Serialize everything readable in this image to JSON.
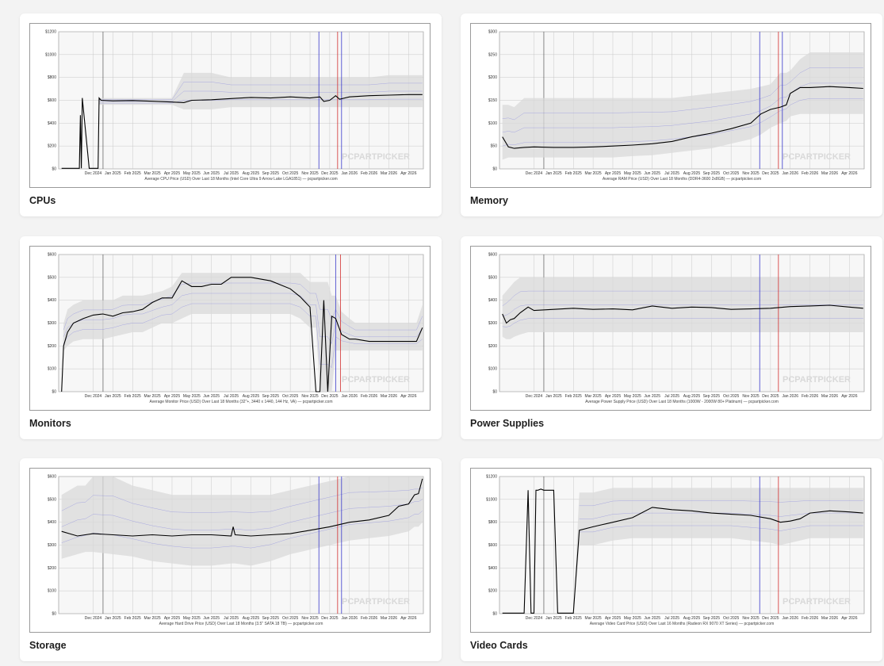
{
  "months": [
    "Dec 2024",
    "Jan 2025",
    "Feb 2025",
    "Mar 2025",
    "Apr 2025",
    "May 2025",
    "Jun 2025",
    "Jul 2025",
    "Aug 2025",
    "Sep 2025",
    "Oct 2025",
    "Nov 2025",
    "Dec 2025",
    "Jan 2026",
    "Feb 2026",
    "Mar 2026",
    "Apr 2026"
  ],
  "watermark": "PCPARTPICKER",
  "colors": {
    "price_line": "#000000",
    "range_band": "#d9d9d9",
    "retailer_lines": "#6a6ae0",
    "blue_marker": "#3a3acc",
    "red_marker": "#d33030",
    "grid": "#c8c8c8",
    "plot_bg": "#f7f7f7"
  },
  "chart_data": [
    {
      "type": "line",
      "card_title": "CPUs",
      "caption": "Average CPU Price (USD) Over Last 18 Months (Intel Core Ultra 9 Arrow Lake LGA1851) — pcpartpicker.com",
      "yticks": [
        "$0",
        "$200",
        "$400",
        "$600",
        "$800",
        "$1000",
        "$1200"
      ],
      "ylim": [
        0,
        1200
      ],
      "x": [
        -1.6,
        -0.7,
        -0.65,
        -0.6,
        -0.55,
        -0.2,
        0.25,
        0.3,
        0.4,
        1,
        2,
        3,
        4,
        4.6,
        5,
        6,
        7,
        8,
        9,
        10,
        11,
        11.5,
        11.7,
        12,
        12.3,
        12.5,
        13,
        14,
        15,
        16,
        16.7
      ],
      "values": [
        5,
        5,
        470,
        5,
        620,
        5,
        5,
        620,
        600,
        595,
        598,
        592,
        585,
        580,
        600,
        605,
        615,
        625,
        620,
        630,
        620,
        630,
        590,
        600,
        640,
        610,
        630,
        640,
        645,
        650,
        650
      ],
      "band_low": [
        0,
        0,
        0,
        0,
        0,
        0,
        0,
        560,
        560,
        560,
        560,
        560,
        560,
        520,
        520,
        520,
        540,
        540,
        540,
        540,
        540,
        540,
        540,
        540,
        540,
        540,
        540,
        540,
        540,
        540,
        540
      ],
      "band_high": [
        0,
        0,
        0,
        0,
        0,
        0,
        0,
        620,
        620,
        620,
        620,
        620,
        620,
        840,
        840,
        840,
        800,
        800,
        800,
        800,
        800,
        800,
        800,
        800,
        800,
        800,
        800,
        800,
        820,
        820,
        820
      ],
      "markers": [
        {
          "color": "blue",
          "x": 11.45
        },
        {
          "color": "red",
          "x": 12.4
        },
        {
          "color": "blue",
          "x": 12.6
        }
      ]
    },
    {
      "type": "line",
      "card_title": "Memory",
      "caption": "Average RAM Price (USD) Over Last 18 Months (DDR4-3600 2x8GB) — pcpartpicker.com",
      "yticks": [
        "$0",
        "$50",
        "$100",
        "$150",
        "$200",
        "$250",
        "$300"
      ],
      "ylim": [
        0,
        300
      ],
      "x": [
        -1.6,
        -1.3,
        -1,
        -0.5,
        0,
        1,
        2,
        3,
        4,
        5,
        6,
        7,
        8,
        9,
        10,
        11,
        11.5,
        12,
        12.5,
        12.8,
        13,
        13.5,
        14,
        15,
        16,
        16.7
      ],
      "values": [
        70,
        48,
        45,
        47,
        48,
        47,
        47,
        48,
        50,
        52,
        55,
        60,
        70,
        78,
        88,
        100,
        120,
        130,
        135,
        140,
        165,
        178,
        178,
        180,
        178,
        176
      ],
      "band_low": [
        20,
        25,
        25,
        25,
        25,
        25,
        25,
        25,
        25,
        28,
        30,
        35,
        40,
        45,
        55,
        65,
        75,
        90,
        100,
        105,
        115,
        120,
        120,
        120,
        120,
        120
      ],
      "band_high": [
        140,
        140,
        135,
        155,
        155,
        155,
        155,
        155,
        155,
        155,
        155,
        155,
        160,
        165,
        170,
        175,
        180,
        185,
        210,
        210,
        215,
        240,
        255,
        255,
        255,
        255
      ],
      "markers": [
        {
          "color": "blue",
          "x": 11.45
        },
        {
          "color": "red",
          "x": 12.4
        },
        {
          "color": "blue",
          "x": 12.6
        }
      ]
    },
    {
      "type": "line",
      "card_title": "Monitors",
      "caption": "Average Monitor Price (USD) Over Last 18 Months (32\"+, 3440 x 1440, 144 Hz, VA) — pcpartpicker.com",
      "yticks": [
        "$0",
        "$100",
        "$200",
        "$300",
        "$400",
        "$500",
        "$600"
      ],
      "ylim": [
        0,
        600
      ],
      "x": [
        -1.6,
        -1.5,
        -1.3,
        -1,
        -0.5,
        0,
        0.5,
        1,
        1.5,
        2,
        2.5,
        3,
        3.5,
        4,
        4.5,
        5,
        5.5,
        6,
        6.5,
        7,
        8,
        9,
        10,
        10.5,
        11,
        11.3,
        11.5,
        11.7,
        11.9,
        12.1,
        12.3,
        12.6,
        13,
        13.3,
        14,
        15,
        16,
        16.4,
        16.7
      ],
      "values": [
        0,
        200,
        260,
        300,
        320,
        335,
        340,
        330,
        345,
        350,
        360,
        390,
        410,
        410,
        485,
        460,
        460,
        470,
        470,
        500,
        500,
        485,
        450,
        415,
        370,
        0,
        0,
        400,
        0,
        330,
        320,
        250,
        230,
        230,
        220,
        220,
        220,
        220,
        280
      ],
      "band_low": [
        0,
        180,
        200,
        220,
        230,
        230,
        230,
        240,
        250,
        260,
        260,
        280,
        300,
        300,
        320,
        340,
        340,
        340,
        340,
        340,
        340,
        340,
        340,
        320,
        280,
        280,
        0,
        0,
        0,
        0,
        180,
        180,
        180,
        180,
        180,
        180,
        180,
        180,
        180
      ],
      "band_high": [
        0,
        300,
        360,
        380,
        400,
        400,
        400,
        400,
        420,
        420,
        420,
        430,
        440,
        460,
        520,
        520,
        520,
        520,
        520,
        520,
        520,
        520,
        520,
        520,
        480,
        480,
        480,
        480,
        480,
        420,
        420,
        350,
        320,
        300,
        300,
        300,
        300,
        300,
        380
      ],
      "markers": [
        {
          "color": "blue",
          "x": 12.3
        },
        {
          "color": "red",
          "x": 12.55
        }
      ]
    },
    {
      "type": "line",
      "card_title": "Power Supplies",
      "caption": "Average Power Supply Price (USD) Over Last 18 Months (1000W - 2000W 80+ Platinum) — pcpartpicker.com",
      "yticks": [
        "$0",
        "$100",
        "$200",
        "$300",
        "$400",
        "$500",
        "$600"
      ],
      "ylim": [
        0,
        600
      ],
      "x": [
        -1.6,
        -1.4,
        -1.2,
        -1,
        -0.7,
        -0.3,
        0,
        1,
        2,
        3,
        4,
        5,
        6,
        7,
        8,
        9,
        10,
        11,
        12,
        13,
        14,
        15,
        16,
        16.7
      ],
      "values": [
        340,
        300,
        315,
        320,
        345,
        370,
        355,
        360,
        365,
        360,
        362,
        358,
        375,
        365,
        370,
        368,
        360,
        362,
        365,
        372,
        375,
        378,
        370,
        365
      ],
      "band_low": [
        240,
        230,
        230,
        240,
        250,
        260,
        260,
        260,
        260,
        260,
        260,
        260,
        260,
        260,
        260,
        260,
        260,
        260,
        260,
        260,
        260,
        260,
        260,
        260
      ],
      "band_high": [
        420,
        440,
        460,
        480,
        500,
        500,
        500,
        500,
        500,
        500,
        500,
        500,
        500,
        500,
        500,
        500,
        500,
        500,
        500,
        500,
        500,
        500,
        500,
        500
      ],
      "markers": [
        {
          "color": "blue",
          "x": 11.45
        },
        {
          "color": "red",
          "x": 12.4
        }
      ]
    },
    {
      "type": "line",
      "card_title": "Storage",
      "caption": "Average Hard Drive Price (USD) Over Last 18 Months (3.5\" SATA 18 TB) — pcpartpicker.com",
      "yticks": [
        "$0",
        "$100",
        "$200",
        "$300",
        "$400",
        "$500",
        "$600"
      ],
      "ylim": [
        0,
        600
      ],
      "x": [
        -1.6,
        -1.2,
        -0.8,
        -0.4,
        0,
        1,
        2,
        3,
        4,
        5,
        6,
        7,
        7.1,
        7.2,
        8,
        9,
        10,
        11,
        12,
        13,
        14,
        15,
        15.5,
        16,
        16.3,
        16.5,
        16.7
      ],
      "values": [
        360,
        350,
        340,
        345,
        350,
        345,
        340,
        345,
        340,
        345,
        345,
        340,
        380,
        345,
        340,
        345,
        350,
        365,
        380,
        400,
        410,
        430,
        470,
        480,
        520,
        525,
        590
      ],
      "band_low": [
        240,
        250,
        260,
        270,
        270,
        260,
        250,
        230,
        220,
        210,
        210,
        220,
        220,
        220,
        210,
        230,
        260,
        280,
        300,
        320,
        330,
        340,
        350,
        360,
        380,
        380,
        400
      ],
      "band_high": [
        520,
        540,
        560,
        560,
        600,
        600,
        560,
        540,
        520,
        520,
        520,
        520,
        520,
        520,
        520,
        520,
        540,
        560,
        580,
        600,
        600,
        600,
        600,
        600,
        600,
        600,
        600
      ],
      "markers": [
        {
          "color": "blue",
          "x": 11.45
        },
        {
          "color": "red",
          "x": 12.4
        },
        {
          "color": "blue",
          "x": 12.6
        }
      ]
    },
    {
      "type": "line",
      "card_title": "Video Cards",
      "caption": "Average Video Card Price (USD) Over Last 16 Months (Radeon RX 9070 XT Series) — pcpartpicker.com",
      "yticks": [
        "$0",
        "$200",
        "$400",
        "$600",
        "$800",
        "$1000",
        "$1200"
      ],
      "ylim": [
        0,
        1200
      ],
      "x": [
        -1.6,
        -0.5,
        -0.3,
        -0.15,
        0,
        0.1,
        0.2,
        0.35,
        0.5,
        1,
        1.2,
        1.5,
        1.7,
        2,
        2.3,
        3,
        3.5,
        4,
        5,
        6,
        7,
        8,
        9,
        10,
        11,
        12,
        12.5,
        13,
        13.5,
        14,
        15,
        16,
        16.7
      ],
      "values": [
        5,
        5,
        1080,
        5,
        5,
        1080,
        1080,
        1090,
        1080,
        1080,
        5,
        5,
        5,
        5,
        730,
        760,
        780,
        800,
        840,
        930,
        910,
        900,
        880,
        870,
        860,
        830,
        800,
        810,
        830,
        880,
        900,
        890,
        880
      ],
      "band_low": [
        0,
        0,
        0,
        0,
        0,
        0,
        0,
        0,
        0,
        0,
        0,
        0,
        0,
        0,
        600,
        600,
        620,
        640,
        660,
        660,
        660,
        660,
        660,
        660,
        640,
        620,
        600,
        620,
        640,
        660,
        660,
        660,
        660
      ],
      "band_high": [
        0,
        0,
        0,
        0,
        0,
        0,
        0,
        0,
        0,
        0,
        0,
        0,
        0,
        0,
        1060,
        1060,
        1080,
        1100,
        1100,
        1100,
        1100,
        1100,
        1100,
        1100,
        1100,
        1100,
        1100,
        1100,
        1100,
        1100,
        1100,
        1100,
        1100
      ],
      "markers": [
        {
          "color": "blue",
          "x": 11.45
        },
        {
          "color": "red",
          "x": 12.4
        }
      ]
    }
  ]
}
